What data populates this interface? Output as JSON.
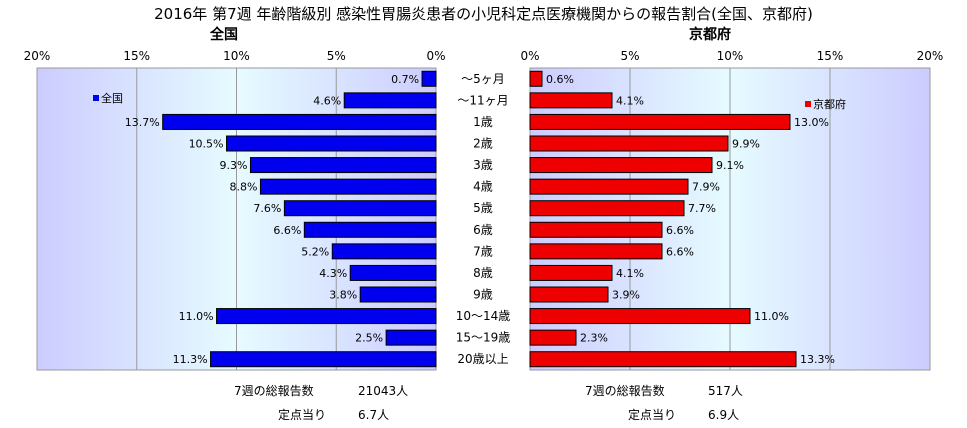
{
  "title": "2016年 第7週 年齢階級別 感染性胃腸炎患者の小児科定点医療機関からの報告割合(全国、京都府)",
  "colors": {
    "national_bar": "#0000ee",
    "kyoto_bar": "#ee0000",
    "plot_bg_edge": "#ccccff",
    "plot_bg_center": "#e6fbff"
  },
  "chart_data": [
    {
      "type": "bar",
      "orientation": "horizontal",
      "direction": "right-to-left",
      "title": "全国",
      "legend": "全国",
      "legend_position": "top-left",
      "xlim": [
        0,
        20
      ],
      "ticks": [
        "20%",
        "15%",
        "10%",
        "5%",
        "0%"
      ],
      "tick_values": [
        20,
        15,
        10,
        5,
        0
      ],
      "grid": true,
      "categories": [
        "～5ヶ月",
        "～11ヶ月",
        "1歳",
        "2歳",
        "3歳",
        "4歳",
        "5歳",
        "6歳",
        "7歳",
        "8歳",
        "9歳",
        "10～14歳",
        "15～19歳",
        "20歳以上"
      ],
      "values": [
        0.7,
        4.6,
        13.7,
        10.5,
        9.3,
        8.8,
        7.6,
        6.6,
        5.2,
        4.3,
        3.8,
        11.0,
        2.5,
        11.3
      ],
      "value_labels": [
        "0.7%",
        "4.6%",
        "13.7%",
        "10.5%",
        "9.3%",
        "8.8%",
        "7.6%",
        "6.6%",
        "5.2%",
        "4.3%",
        "3.8%",
        "11.0%",
        "2.5%",
        "11.3%"
      ]
    },
    {
      "type": "bar",
      "orientation": "horizontal",
      "direction": "left-to-right",
      "title": "京都府",
      "legend": "京都府",
      "legend_position": "top-right",
      "xlim": [
        0,
        20
      ],
      "ticks": [
        "0%",
        "5%",
        "10%",
        "15%",
        "20%"
      ],
      "tick_values": [
        0,
        5,
        10,
        15,
        20
      ],
      "grid": true,
      "categories": [
        "～5ヶ月",
        "～11ヶ月",
        "1歳",
        "2歳",
        "3歳",
        "4歳",
        "5歳",
        "6歳",
        "7歳",
        "8歳",
        "9歳",
        "10～14歳",
        "15～19歳",
        "20歳以上"
      ],
      "values": [
        0.6,
        4.1,
        13.0,
        9.9,
        9.1,
        7.9,
        7.7,
        6.6,
        6.6,
        4.1,
        3.9,
        11.0,
        2.3,
        13.3
      ],
      "value_labels": [
        "0.6%",
        "4.1%",
        "13.0%",
        "9.9%",
        "9.1%",
        "7.9%",
        "7.7%",
        "6.6%",
        "6.6%",
        "4.1%",
        "3.9%",
        "11.0%",
        "2.3%",
        "13.3%"
      ]
    }
  ],
  "summary": {
    "national": {
      "total_label": "7週の総報告数",
      "total_value": "21043人",
      "per_site_label": "定点当り",
      "per_site_value": "6.7人"
    },
    "kyoto": {
      "total_label": "7週の総報告数",
      "total_value": "517人",
      "per_site_label": "定点当り",
      "per_site_value": "6.9人"
    }
  }
}
